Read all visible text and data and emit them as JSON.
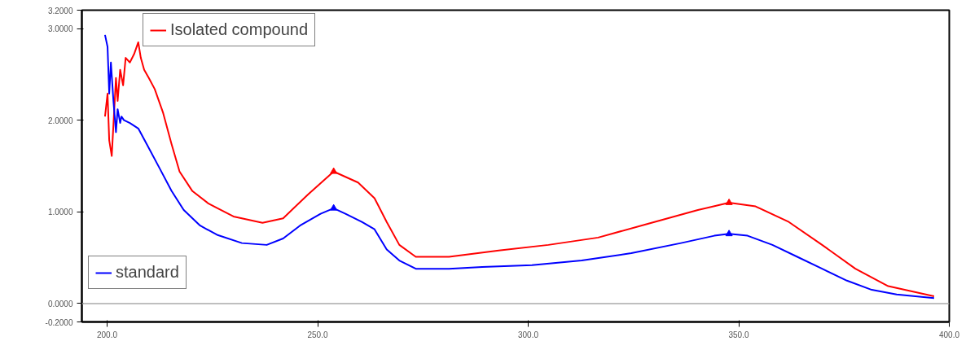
{
  "chart_data": {
    "type": "line",
    "xlim": [
      194,
      400
    ],
    "ylim": [
      -0.2,
      3.2
    ],
    "xticks": [
      {
        "value": 200,
        "label": "200.0"
      },
      {
        "value": 250,
        "label": "250.0"
      },
      {
        "value": 300,
        "label": "300.0"
      },
      {
        "value": 350,
        "label": "350.0"
      },
      {
        "value": 400,
        "label": "400.0"
      }
    ],
    "yticks": [
      {
        "value": -0.2,
        "label": "-0.2000"
      },
      {
        "value": 0,
        "label": "0.0000"
      },
      {
        "value": 1,
        "label": "1.0000"
      },
      {
        "value": 2,
        "label": "2.0000"
      },
      {
        "value": 3,
        "label": "3.0000"
      },
      {
        "value": 3.2,
        "label": "3.2000"
      }
    ],
    "grid": false,
    "legend": "left",
    "ref_lines": [
      {
        "axis": "y",
        "value": 0,
        "color": "#aaaaaa"
      }
    ],
    "series": [
      {
        "name": "Isolated compound",
        "color": "#ff0000",
        "x": [
          199.5,
          200.1,
          200.5,
          201.1,
          201.5,
          202.1,
          202.5,
          203.1,
          203.8,
          204.4,
          205.4,
          206.4,
          207.4,
          208.0,
          208.8,
          209.9,
          211.3,
          213.3,
          215.3,
          217.2,
          220.2,
          224.1,
          230.0,
          236.9,
          241.8,
          247.7,
          253.8,
          259.6,
          263.5,
          266.4,
          269.4,
          273.3,
          281.2,
          293.0,
          304.8,
          316.6,
          328.4,
          340.3,
          347.7,
          354.0,
          361.9,
          369.8,
          377.7,
          385.5,
          396.4
        ],
        "values": [
          2.04,
          2.29,
          1.78,
          1.61,
          1.95,
          2.46,
          2.21,
          2.55,
          2.38,
          2.68,
          2.63,
          2.72,
          2.85,
          2.68,
          2.55,
          2.46,
          2.34,
          2.08,
          1.74,
          1.44,
          1.23,
          1.09,
          0.95,
          0.88,
          0.93,
          1.19,
          1.44,
          1.32,
          1.15,
          0.89,
          0.64,
          0.51,
          0.51,
          0.58,
          0.64,
          0.72,
          0.87,
          1.02,
          1.1,
          1.06,
          0.89,
          0.64,
          0.38,
          0.19,
          0.08
        ]
      },
      {
        "name": "standard",
        "color": "#0000ff",
        "x": [
          199.5,
          200.1,
          200.5,
          200.9,
          201.5,
          202.1,
          202.5,
          203.1,
          203.4,
          204.0,
          205.4,
          207.4,
          209.4,
          212.3,
          215.3,
          218.2,
          222.1,
          226.1,
          232.0,
          237.9,
          241.8,
          245.8,
          250.7,
          253.8,
          256.6,
          260.5,
          263.5,
          266.4,
          269.4,
          273.3,
          281.2,
          289.1,
          300.9,
          312.7,
          324.5,
          336.3,
          344.2,
          347.7,
          352.1,
          358.0,
          363.9,
          369.8,
          375.7,
          381.6,
          387.5,
          396.4
        ],
        "values": [
          2.93,
          2.8,
          2.29,
          2.63,
          2.21,
          1.87,
          2.12,
          1.97,
          2.04,
          2.0,
          1.97,
          1.91,
          1.74,
          1.49,
          1.23,
          1.02,
          0.85,
          0.75,
          0.66,
          0.64,
          0.71,
          0.85,
          0.98,
          1.04,
          0.98,
          0.89,
          0.81,
          0.59,
          0.47,
          0.38,
          0.38,
          0.4,
          0.42,
          0.47,
          0.55,
          0.66,
          0.74,
          0.76,
          0.74,
          0.64,
          0.51,
          0.38,
          0.25,
          0.15,
          0.1,
          0.06
        ]
      },
      {
        "type": "scatter",
        "marker": "triangle",
        "color": "#ff0000",
        "x": [
          253.8,
          347.7
        ],
        "values": [
          1.44,
          1.1
        ]
      },
      {
        "type": "scatter",
        "marker": "triangle",
        "color": "#0000ff",
        "x": [
          253.8,
          347.7
        ],
        "values": [
          1.04,
          0.76
        ]
      }
    ]
  }
}
